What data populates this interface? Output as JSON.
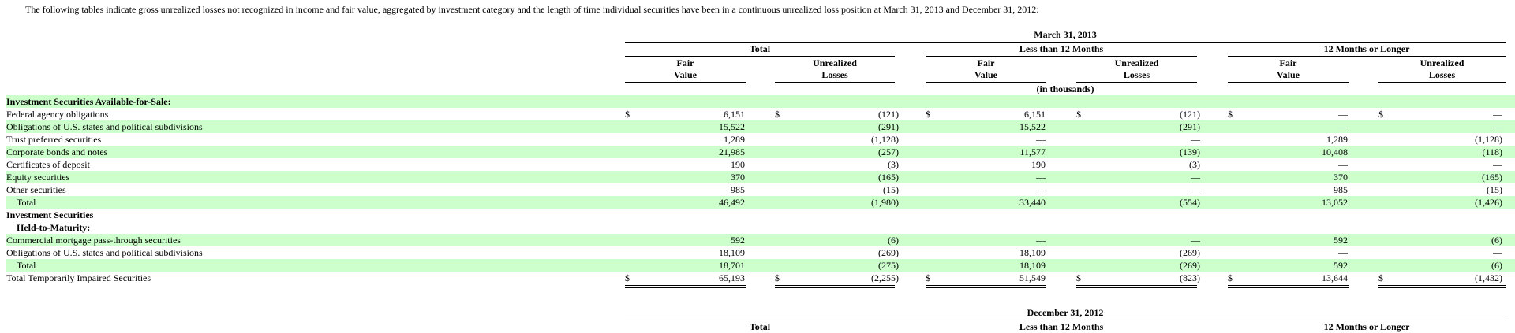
{
  "intro": "The following tables indicate gross unrealized losses not recognized in income and fair value, aggregated by investment category and the length of time individual securities have been in a continuous unrealized loss position at March 31, 2013 and December 31, 2012:",
  "period_1": "March 31, 2013",
  "period_2": "December 31, 2012",
  "groups": [
    "Total",
    "Less than 12 Months",
    "12 Months or Longer"
  ],
  "col_fair": [
    "Fair",
    "Value"
  ],
  "col_loss": [
    "Unrealized",
    "Losses"
  ],
  "units": "(in thousands)",
  "currency": "$",
  "rows": [
    {
      "label": "Investment Securities Available-for-Sale:",
      "style": "bold",
      "shade": true,
      "values": null
    },
    {
      "label": "Federal agency obligations",
      "shade": false,
      "dollar": true,
      "values": [
        "6,151",
        "(121)",
        "6,151",
        "(121)",
        "—",
        "—"
      ]
    },
    {
      "label": "Obligations of U.S. states and political subdivisions",
      "shade": true,
      "values": [
        "15,522",
        "(291)",
        "15,522",
        "(291)",
        "—",
        "—"
      ]
    },
    {
      "label": "Trust preferred securities",
      "shade": false,
      "values": [
        "1,289",
        "(1,128)",
        "—",
        "—",
        "1,289",
        "(1,128)"
      ]
    },
    {
      "label": "Corporate bonds and notes",
      "shade": true,
      "values": [
        "21,985",
        "(257)",
        "11,577",
        "(139)",
        "10,408",
        "(118)"
      ]
    },
    {
      "label": "Certificates of deposit",
      "shade": false,
      "values": [
        "190",
        "(3)",
        "190",
        "(3)",
        "—",
        "—"
      ]
    },
    {
      "label": "Equity securities",
      "shade": true,
      "values": [
        "370",
        "(165)",
        "—",
        "—",
        "370",
        "(165)"
      ]
    },
    {
      "label": "Other securities",
      "shade": false,
      "values": [
        "985",
        "(15)",
        "—",
        "—",
        "985",
        "(15)"
      ],
      "rule_after": "single"
    },
    {
      "label": "Total",
      "style": "indent",
      "shade": true,
      "values": [
        "46,492",
        "(1,980)",
        "33,440",
        "(554)",
        "13,052",
        "(1,426)"
      ]
    },
    {
      "label": "Investment Securities",
      "style": "bold",
      "shade": false,
      "values": null
    },
    {
      "label": "Held-to-Maturity:",
      "style": "bold-indent",
      "shade": false,
      "values": null
    },
    {
      "label": "Commercial mortgage pass-through securities",
      "shade": true,
      "values": [
        "592",
        "(6)",
        "—",
        "—",
        "592",
        "(6)"
      ]
    },
    {
      "label": "Obligations of U.S. states and political subdivisions",
      "shade": false,
      "values": [
        "18,109",
        "(269)",
        "18,109",
        "(269)",
        "—",
        "—"
      ],
      "rule_after": "single"
    },
    {
      "label": "Total",
      "style": "indent",
      "shade": true,
      "values": [
        "18,701",
        "(275)",
        "18,109",
        "(269)",
        "592",
        "(6)"
      ],
      "rule_after": "single"
    },
    {
      "label": "Total Temporarily Impaired Securities",
      "shade": false,
      "dollar": true,
      "values": [
        "65,193",
        "(2,255)",
        "51,549",
        "(823)",
        "13,644",
        "(1,432)"
      ],
      "rule_after": "double"
    }
  ]
}
